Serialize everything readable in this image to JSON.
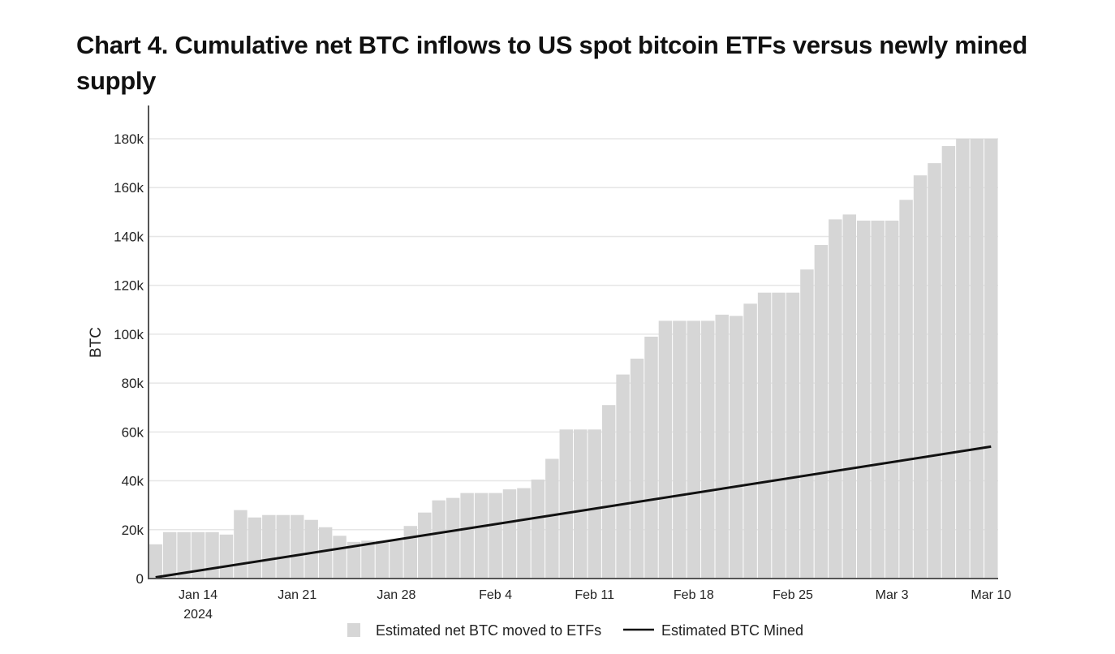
{
  "chart_data": {
    "type": "bar",
    "title": "Chart 4. Cumulative net BTC inflows to US spot bitcoin ETFs versus newly mined supply",
    "xlabel": "",
    "ylabel": "BTC",
    "ylim": [
      0,
      180000
    ],
    "yticks": [
      "0",
      "20k",
      "40k",
      "60k",
      "80k",
      "100k",
      "120k",
      "140k",
      "160k",
      "180k"
    ],
    "ytick_values": [
      0,
      20000,
      40000,
      60000,
      80000,
      100000,
      120000,
      140000,
      160000,
      180000
    ],
    "xticks": [
      {
        "date": "2024-01-14",
        "label": "Jan 14",
        "sublabel": "2024"
      },
      {
        "date": "2024-01-21",
        "label": "Jan 21"
      },
      {
        "date": "2024-01-28",
        "label": "Jan 28"
      },
      {
        "date": "2024-02-04",
        "label": "Feb 4"
      },
      {
        "date": "2024-02-11",
        "label": "Feb 11"
      },
      {
        "date": "2024-02-18",
        "label": "Feb 18"
      },
      {
        "date": "2024-02-25",
        "label": "Feb 25"
      },
      {
        "date": "2024-03-03",
        "label": "Mar 3"
      },
      {
        "date": "2024-03-10",
        "label": "Mar 10"
      }
    ],
    "grid": true,
    "legend_position": "bottom",
    "colors": {
      "bars": "#d6d6d6",
      "line": "#111111",
      "grid": "#e6e6e6"
    },
    "x_start": "2024-01-11",
    "x_end": "2024-03-10",
    "series": [
      {
        "name": "Estimated net BTC moved to ETFs",
        "type": "bar",
        "values": [
          14000,
          19000,
          19000,
          19000,
          19000,
          18000,
          28000,
          25000,
          26000,
          26000,
          26000,
          24000,
          21000,
          17500,
          15000,
          15500,
          15500,
          15500,
          21500,
          27000,
          32000,
          33000,
          35000,
          35000,
          35000,
          36500,
          37000,
          40500,
          49000,
          61000,
          61000,
          61000,
          71000,
          83500,
          90000,
          99000,
          105500,
          105500,
          105500,
          105500,
          108000,
          107500,
          112500,
          117000,
          117000,
          117000,
          126500,
          136500,
          147000,
          149000,
          146500,
          146500,
          146500,
          155000,
          165000,
          170000,
          177000,
          180000,
          180000,
          180000
        ]
      },
      {
        "name": "Estimated BTC Mined",
        "type": "line",
        "points": [
          {
            "date": "2024-01-11",
            "value": 500
          },
          {
            "date": "2024-03-10",
            "value": 54000
          }
        ]
      }
    ]
  }
}
